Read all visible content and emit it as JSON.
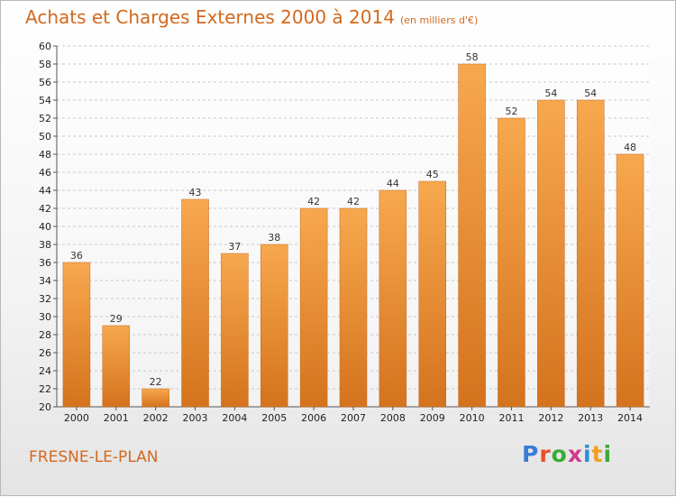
{
  "header": {
    "title": "Achats et Charges Externes 2000 à 2014",
    "subtitle": "(en milliers d'€)"
  },
  "footer": {
    "place": "FRESNE-LE-PLAN",
    "logo": {
      "text": "Proxiti",
      "letters": [
        "P",
        "r",
        "o",
        "x",
        "i",
        "t",
        "i"
      ],
      "colors": [
        "#3a7bd5",
        "#e8502a",
        "#3aaa35",
        "#d03a8c",
        "#2f8fd6",
        "#f0a020",
        "#3aaa35"
      ]
    }
  },
  "colors": {
    "bar_top": "#f7a84e",
    "bar_bottom": "#d4731d",
    "grid": "#c8c8c8",
    "accent": "#d2691e"
  },
  "chart_data": {
    "type": "bar",
    "categories": [
      "2000",
      "2001",
      "2002",
      "2003",
      "2004",
      "2005",
      "2006",
      "2007",
      "2008",
      "2009",
      "2010",
      "2011",
      "2012",
      "2013",
      "2014"
    ],
    "values": [
      36,
      29,
      22,
      43,
      37,
      38,
      42,
      42,
      44,
      45,
      58,
      52,
      54,
      54,
      48
    ],
    "title": "Achats et Charges Externes 2000 à 2014",
    "subtitle": "(en milliers d'€)",
    "ylim": [
      20,
      60
    ],
    "yticks": [
      20,
      22,
      24,
      26,
      28,
      30,
      32,
      34,
      36,
      38,
      40,
      42,
      44,
      46,
      48,
      50,
      52,
      54,
      56,
      58,
      60
    ],
    "grid": true,
    "legend": "none"
  }
}
